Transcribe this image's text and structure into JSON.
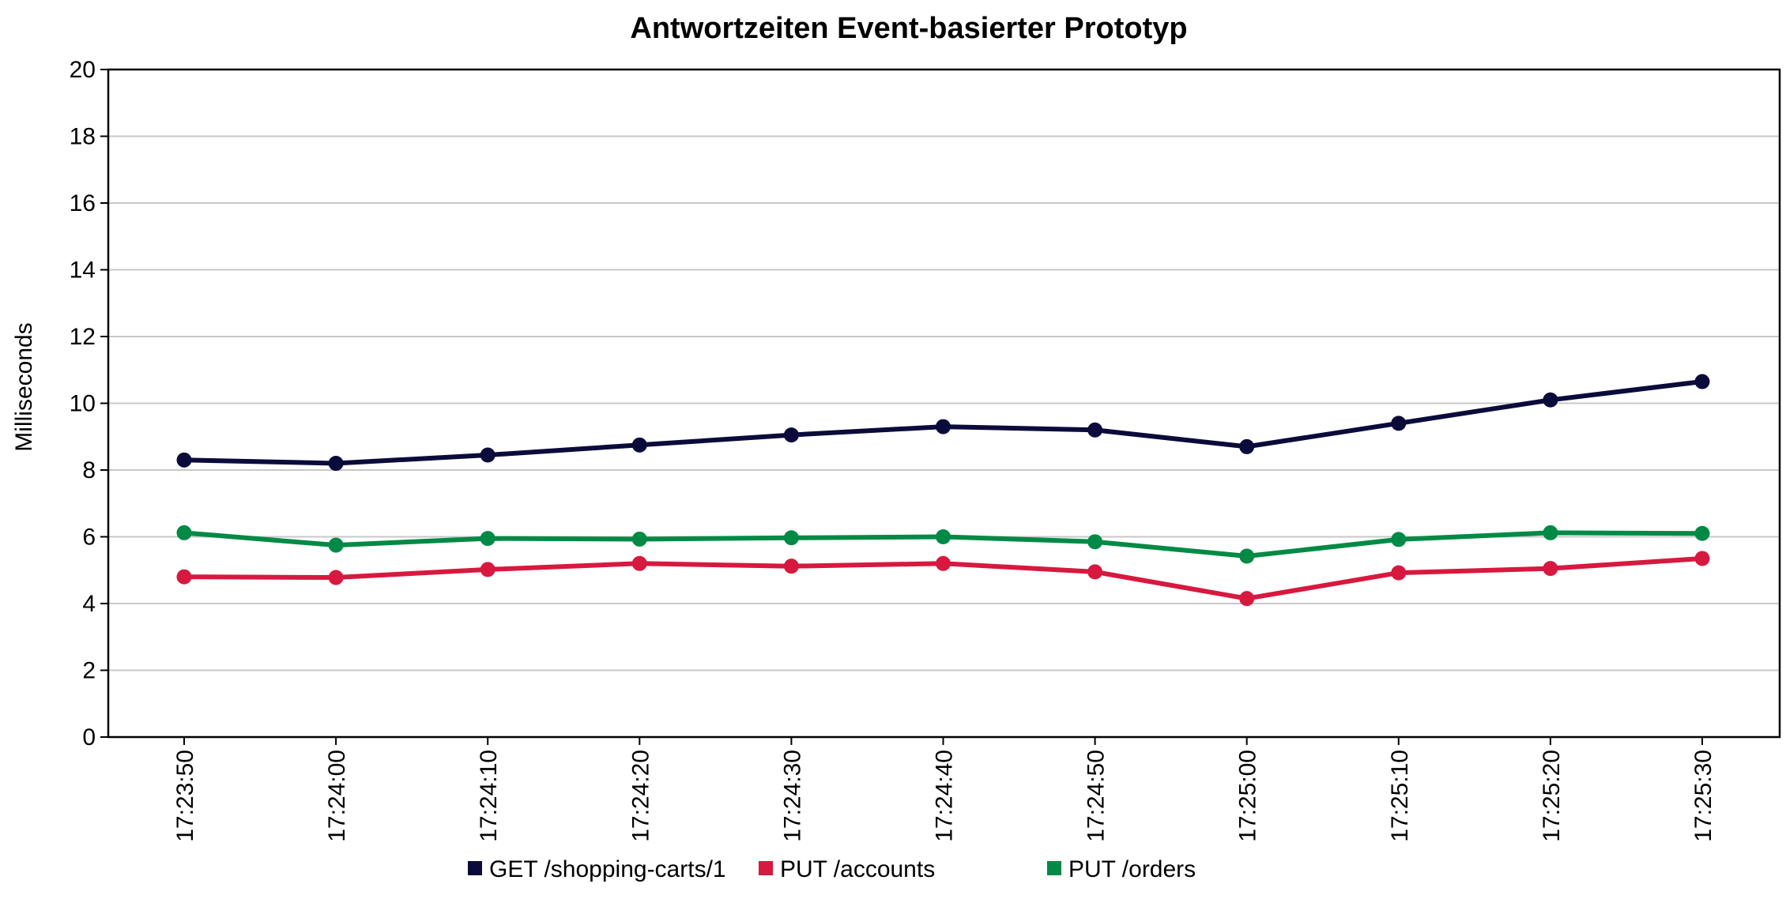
{
  "chart_data": {
    "type": "line",
    "title": "Antwortzeiten Event-basierter Prototyp",
    "xlabel": "",
    "ylabel": "Milliseconds",
    "ylim": [
      0,
      20
    ],
    "yticks": [
      0,
      2,
      4,
      6,
      8,
      10,
      12,
      14,
      16,
      18,
      20
    ],
    "grid": true,
    "legend_position": "bottom",
    "categories": [
      "17:23:50",
      "17:24:00",
      "17:24:10",
      "17:24:20",
      "17:24:30",
      "17:24:40",
      "17:24:50",
      "17:25:00",
      "17:25:10",
      "17:25:20",
      "17:25:30"
    ],
    "series": [
      {
        "name": "GET /shopping-carts/1",
        "color": "#0b0b3b",
        "values": [
          8.3,
          8.2,
          8.45,
          8.75,
          9.05,
          9.3,
          9.2,
          8.7,
          9.4,
          10.1,
          10.65
        ]
      },
      {
        "name": "PUT /accounts",
        "color": "#d7193f",
        "values": [
          4.8,
          4.78,
          5.02,
          5.2,
          5.12,
          5.2,
          4.95,
          4.15,
          4.92,
          5.05,
          5.35
        ]
      },
      {
        "name": "PUT /orders",
        "color": "#008a45",
        "values": [
          6.12,
          5.75,
          5.95,
          5.93,
          5.97,
          6.0,
          5.85,
          5.42,
          5.92,
          6.12,
          6.1
        ]
      }
    ]
  }
}
